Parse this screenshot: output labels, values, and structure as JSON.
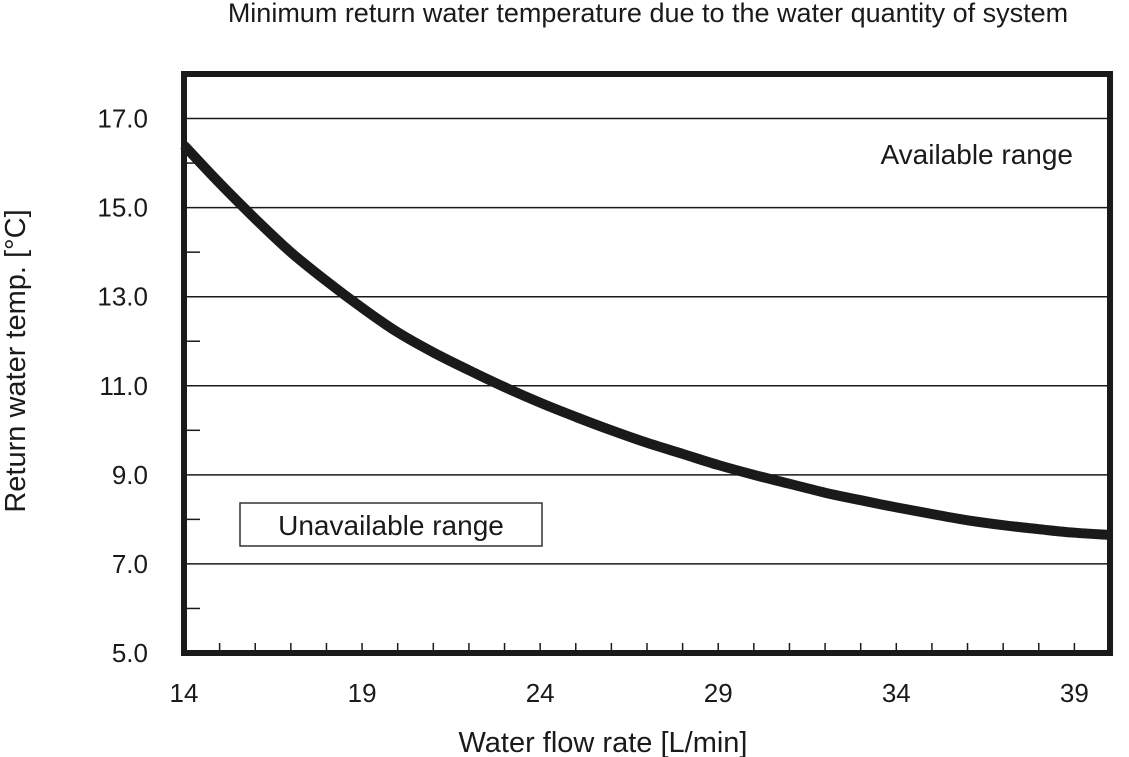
{
  "chart_data": {
    "type": "line",
    "title": "Minimum return water temperature due to the water quantity of system",
    "xlabel": "Water flow rate [L/min]",
    "ylabel": "Return water temp. [°C]",
    "xlim": [
      14,
      40
    ],
    "ylim": [
      5.0,
      18.0
    ],
    "x_ticks": [
      14,
      19,
      24,
      29,
      34,
      39
    ],
    "y_ticks": [
      5.0,
      7.0,
      9.0,
      11.0,
      13.0,
      15.0,
      17.0
    ],
    "y_tick_labels": [
      "5.0",
      "7.0",
      "9.0",
      "11.0",
      "13.0",
      "15.0",
      "17.0"
    ],
    "x_tick_labels": [
      "14",
      "19",
      "24",
      "29",
      "34",
      "39"
    ],
    "grid": "horizontal",
    "annotations": {
      "available": "Available range",
      "unavailable": "Unavailable range"
    },
    "series": [
      {
        "name": "Minimum return water temperature",
        "x": [
          14,
          15,
          16,
          17,
          18,
          19,
          20,
          21,
          22,
          23,
          24,
          25,
          26,
          27,
          28,
          29,
          30,
          31,
          32,
          33,
          34,
          35,
          36,
          37,
          38,
          39,
          40
        ],
        "y": [
          16.4,
          15.55,
          14.75,
          14.0,
          13.35,
          12.75,
          12.2,
          11.75,
          11.35,
          10.97,
          10.62,
          10.3,
          10.0,
          9.72,
          9.47,
          9.22,
          9.0,
          8.8,
          8.6,
          8.43,
          8.27,
          8.12,
          7.98,
          7.87,
          7.78,
          7.7,
          7.65
        ]
      }
    ]
  }
}
